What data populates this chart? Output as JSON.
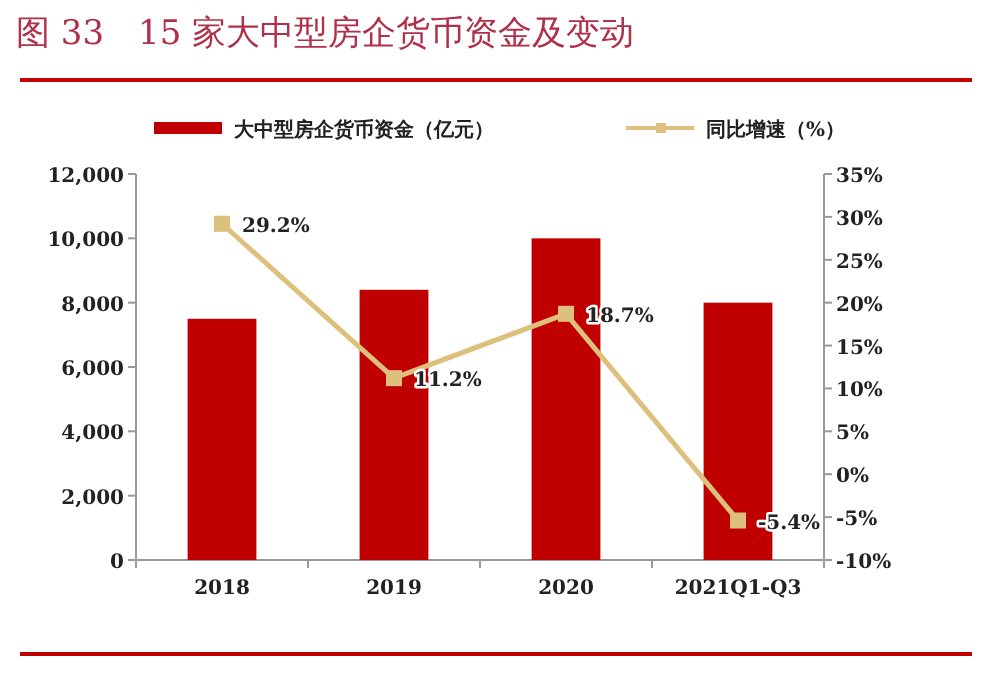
{
  "chart_data": {
    "type": "bar",
    "title": "图 33　15 家大中型房企货币资金及变动",
    "categories": [
      "2018",
      "2019",
      "2020",
      "2021Q1-Q3"
    ],
    "series": [
      {
        "name": "大中型房企货币资金（亿元）",
        "color": "#c00000",
        "values": [
          7500,
          8400,
          10000,
          8000
        ]
      },
      {
        "name": "同比增速（%）",
        "type": "line",
        "axis": "y2",
        "color": "#dcc07c",
        "marker": "square",
        "values": [
          29.2,
          11.2,
          18.7,
          -5.4
        ],
        "value_labels": [
          "29.2%",
          "11.2%",
          "18.7%",
          "-5.4%"
        ]
      }
    ],
    "ylim": [
      0,
      12000
    ],
    "yticks": [
      0,
      {
        "value": 2000,
        "label": "2,000"
      },
      {
        "value": 4000,
        "label": "4,000"
      },
      {
        "value": 6000,
        "label": "6,000"
      },
      {
        "value": 8000,
        "label": "8,000"
      },
      {
        "value": 10000,
        "label": "10,000"
      },
      {
        "value": 12000,
        "label": "12,000"
      }
    ],
    "y2lim": [
      -10,
      35
    ],
    "y2ticks": [
      {
        "value": -10,
        "label": "-10%"
      },
      {
        "value": -5,
        "label": "-5%"
      },
      {
        "value": 0,
        "label": "0%"
      },
      {
        "value": 5,
        "label": "5%"
      },
      {
        "value": 10,
        "label": "10%"
      },
      {
        "value": 15,
        "label": "15%"
      },
      {
        "value": 20,
        "label": "20%"
      },
      {
        "value": 25,
        "label": "25%"
      },
      {
        "value": 30,
        "label": "30%"
      },
      {
        "value": 35,
        "label": "35%"
      }
    ],
    "grid": false,
    "legend": "top"
  }
}
